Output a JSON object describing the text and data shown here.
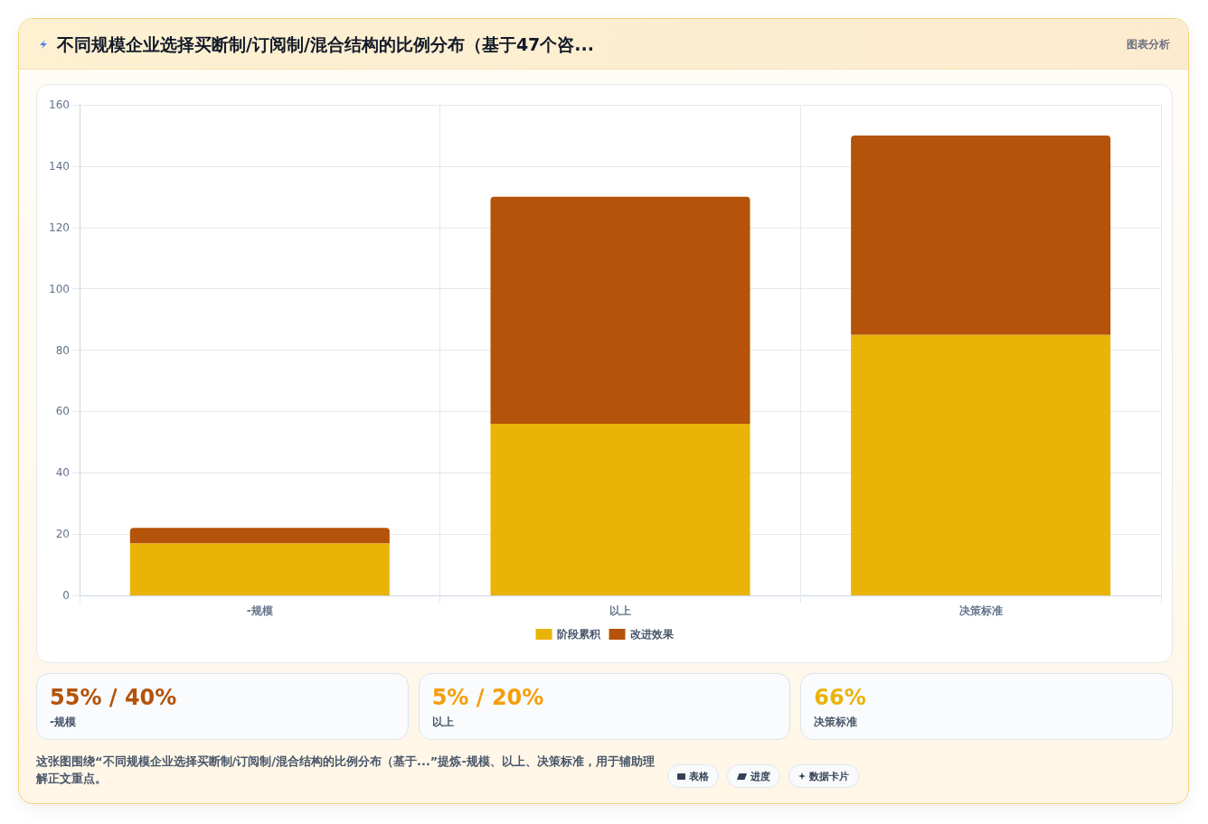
{
  "chart_data": {
    "type": "bar",
    "title": "不同规模企业选择买断制/订阅制/混合结构的比例分布（基于47个咨...",
    "categories": [
      "-规模",
      "以上",
      "决策标准"
    ],
    "series": [
      {
        "name": "阶段累积",
        "color": "#eab308",
        "values": [
          17,
          56,
          85
        ]
      },
      {
        "name": "改进效果",
        "color": "#b45309",
        "values": [
          5,
          74,
          65
        ]
      }
    ],
    "stacked": true,
    "ylim": [
      0,
      160
    ],
    "yticks": [
      0,
      20,
      40,
      60,
      80,
      100,
      120,
      140,
      160
    ],
    "grid": true,
    "legend": "bottom",
    "annotations": [
      "图表分析",
      "55% / 40%",
      "5% / 20%",
      "66%",
      "这张图围绕“不同规模企业选择买断制/订阅制/混合结构的比例分布（基于...”提炼-规模、以上、决策标准，用于辅助理解正文重点。",
      "表格",
      "进度",
      "数据卡片"
    ]
  }
}
